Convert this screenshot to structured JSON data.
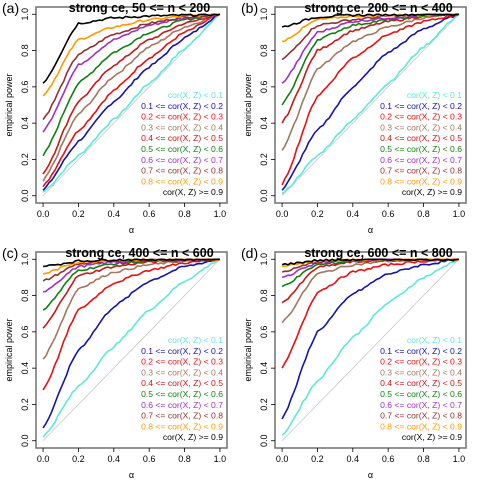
{
  "figure": {
    "ylabel": "empirical power",
    "xlabel": "α",
    "x_ticks": [
      "0.0",
      "0.2",
      "0.4",
      "0.6",
      "0.8",
      "1.0"
    ],
    "y_ticks": [
      "0.0",
      "0.2",
      "0.4",
      "0.6",
      "0.8",
      "1.0"
    ],
    "legend": [
      {
        "label": "cor(X, Z) < 0.1",
        "color": "#5ee8d8"
      },
      {
        "label": "0.1 <= cor(X, Z) < 0.2",
        "color": "#1414a8"
      },
      {
        "label": "0.2 <= cor(X, Z) < 0.3",
        "color": "#e81010"
      },
      {
        "label": "0.3 <= cor(X, Z) < 0.4",
        "color": "#a07860"
      },
      {
        "label": "0.4 <= cor(X, Z) < 0.5",
        "color": "#c81818"
      },
      {
        "label": "0.5 <= cor(X, Z) < 0.6",
        "color": "#108010"
      },
      {
        "label": "0.6 <= cor(X, Z) < 0.7",
        "color": "#a030c0"
      },
      {
        "label": "0.7 <= cor(X, Z) < 0.8",
        "color": "#903030"
      },
      {
        "label": "0.8 <= cor(X, Z) < 0.9",
        "color": "#ff9a00"
      },
      {
        "label": "cor(X, Z) >= 0.9",
        "color": "#000000"
      }
    ]
  },
  "chart_data": [
    {
      "type": "line",
      "panel_tag": "(a)",
      "title": "strong ce,  50 <= n < 200",
      "xlim": [
        0,
        1
      ],
      "ylim": [
        0,
        1
      ],
      "reference_line": "y = x",
      "series": [
        {
          "name": "cor(X, Z) < 0.1",
          "x": [
            0,
            0.2,
            0.4,
            0.6,
            0.8,
            1.0
          ],
          "y": [
            0.02,
            0.22,
            0.42,
            0.62,
            0.81,
            1.0
          ]
        },
        {
          "name": "0.1 <= cor(X, Z) < 0.2",
          "x": [
            0,
            0.2,
            0.4,
            0.6,
            0.8,
            1.0
          ],
          "y": [
            0.03,
            0.3,
            0.52,
            0.71,
            0.87,
            1.0
          ]
        },
        {
          "name": "0.2 <= cor(X, Z) < 0.3",
          "x": [
            0,
            0.2,
            0.4,
            0.6,
            0.8,
            1.0
          ],
          "y": [
            0.05,
            0.36,
            0.58,
            0.76,
            0.9,
            1.0
          ]
        },
        {
          "name": "0.3 <= cor(X, Z) < 0.4",
          "x": [
            0,
            0.2,
            0.4,
            0.6,
            0.8,
            1.0
          ],
          "y": [
            0.08,
            0.45,
            0.66,
            0.82,
            0.93,
            1.0
          ]
        },
        {
          "name": "0.4 <= cor(X, Z) < 0.5",
          "x": [
            0,
            0.2,
            0.4,
            0.6,
            0.8,
            1.0
          ],
          "y": [
            0.12,
            0.52,
            0.72,
            0.86,
            0.95,
            1.0
          ]
        },
        {
          "name": "0.5 <= cor(X, Z) < 0.6",
          "x": [
            0,
            0.2,
            0.4,
            0.6,
            0.8,
            1.0
          ],
          "y": [
            0.22,
            0.62,
            0.79,
            0.9,
            0.97,
            1.0
          ]
        },
        {
          "name": "0.6 <= cor(X, Z) < 0.7",
          "x": [
            0,
            0.2,
            0.4,
            0.6,
            0.8,
            1.0
          ],
          "y": [
            0.35,
            0.72,
            0.86,
            0.94,
            0.98,
            1.0
          ]
        },
        {
          "name": "0.7 <= cor(X, Z) < 0.8",
          "x": [
            0,
            0.2,
            0.4,
            0.6,
            0.8,
            1.0
          ],
          "y": [
            0.42,
            0.78,
            0.89,
            0.95,
            0.985,
            1.0
          ]
        },
        {
          "name": "0.8 <= cor(X, Z) < 0.9",
          "x": [
            0,
            0.2,
            0.4,
            0.6,
            0.8,
            1.0
          ],
          "y": [
            0.55,
            0.86,
            0.93,
            0.97,
            0.99,
            1.0
          ]
        },
        {
          "name": "cor(X, Z) >= 0.9",
          "x": [
            0,
            0.2,
            0.4,
            0.6,
            0.8,
            1.0
          ],
          "y": [
            0.62,
            0.95,
            0.98,
            0.99,
            0.995,
            1.0
          ]
        }
      ]
    },
    {
      "type": "line",
      "panel_tag": "(b)",
      "title": "strong ce,  200 <= n < 400",
      "xlim": [
        0,
        1
      ],
      "ylim": [
        0,
        1
      ],
      "reference_line": "y = x",
      "series": [
        {
          "name": "cor(X, Z) < 0.1",
          "x": [
            0,
            0.2,
            0.4,
            0.6,
            0.8,
            1.0
          ],
          "y": [
            0.01,
            0.22,
            0.42,
            0.62,
            0.82,
            1.0
          ]
        },
        {
          "name": "0.1 <= cor(X, Z) < 0.2",
          "x": [
            0,
            0.2,
            0.4,
            0.6,
            0.8,
            1.0
          ],
          "y": [
            0.03,
            0.36,
            0.6,
            0.79,
            0.92,
            1.0
          ]
        },
        {
          "name": "0.2 <= cor(X, Z) < 0.3",
          "x": [
            0,
            0.2,
            0.4,
            0.6,
            0.8,
            1.0
          ],
          "y": [
            0.06,
            0.55,
            0.76,
            0.89,
            0.96,
            1.0
          ]
        },
        {
          "name": "0.3 <= cor(X, Z) < 0.4",
          "x": [
            0,
            0.2,
            0.4,
            0.6,
            0.8,
            1.0
          ],
          "y": [
            0.25,
            0.7,
            0.85,
            0.93,
            0.98,
            1.0
          ]
        },
        {
          "name": "0.4 <= cor(X, Z) < 0.5",
          "x": [
            0,
            0.2,
            0.4,
            0.6,
            0.8,
            1.0
          ],
          "y": [
            0.4,
            0.8,
            0.91,
            0.96,
            0.99,
            1.0
          ]
        },
        {
          "name": "0.5 <= cor(X, Z) < 0.6",
          "x": [
            0,
            0.2,
            0.4,
            0.6,
            0.8,
            1.0
          ],
          "y": [
            0.5,
            0.86,
            0.94,
            0.97,
            0.99,
            1.0
          ]
        },
        {
          "name": "0.6 <= cor(X, Z) < 0.7",
          "x": [
            0,
            0.2,
            0.4,
            0.6,
            0.8,
            1.0
          ],
          "y": [
            0.62,
            0.9,
            0.96,
            0.98,
            0.995,
            1.0
          ]
        },
        {
          "name": "0.7 <= cor(X, Z) < 0.8",
          "x": [
            0,
            0.2,
            0.4,
            0.6,
            0.8,
            1.0
          ],
          "y": [
            0.75,
            0.94,
            0.97,
            0.99,
            0.997,
            1.0
          ]
        },
        {
          "name": "0.8 <= cor(X, Z) < 0.9",
          "x": [
            0,
            0.2,
            0.4,
            0.6,
            0.8,
            1.0
          ],
          "y": [
            0.85,
            0.97,
            0.99,
            0.995,
            0.998,
            1.0
          ]
        },
        {
          "name": "cor(X, Z) >= 0.9",
          "x": [
            0,
            0.2,
            0.4,
            0.6,
            0.8,
            1.0
          ],
          "y": [
            0.93,
            0.985,
            0.995,
            0.998,
            0.999,
            1.0
          ]
        }
      ]
    },
    {
      "type": "line",
      "panel_tag": "(c)",
      "title": "strong ce,  400 <= n < 600",
      "xlim": [
        0,
        1
      ],
      "ylim": [
        0,
        1
      ],
      "reference_line": "y = x",
      "series": [
        {
          "name": "cor(X, Z) < 0.1",
          "x": [
            0,
            0.2,
            0.4,
            0.6,
            0.8,
            1.0
          ],
          "y": [
            0.02,
            0.3,
            0.52,
            0.72,
            0.88,
            1.0
          ]
        },
        {
          "name": "0.1 <= cor(X, Z) < 0.2",
          "x": [
            0,
            0.2,
            0.4,
            0.6,
            0.8,
            1.0
          ],
          "y": [
            0.07,
            0.5,
            0.74,
            0.88,
            0.96,
            1.0
          ]
        },
        {
          "name": "0.2 <= cor(X, Z) < 0.3",
          "x": [
            0,
            0.2,
            0.4,
            0.6,
            0.8,
            1.0
          ],
          "y": [
            0.28,
            0.72,
            0.87,
            0.94,
            0.98,
            1.0
          ]
        },
        {
          "name": "0.3 <= cor(X, Z) < 0.4",
          "x": [
            0,
            0.2,
            0.4,
            0.6,
            0.8,
            1.0
          ],
          "y": [
            0.45,
            0.84,
            0.93,
            0.97,
            0.99,
            1.0
          ]
        },
        {
          "name": "0.4 <= cor(X, Z) < 0.5",
          "x": [
            0,
            0.2,
            0.4,
            0.6,
            0.8,
            1.0
          ],
          "y": [
            0.62,
            0.91,
            0.96,
            0.985,
            0.995,
            1.0
          ]
        },
        {
          "name": "0.5 <= cor(X, Z) < 0.6",
          "x": [
            0,
            0.2,
            0.4,
            0.6,
            0.8,
            1.0
          ],
          "y": [
            0.72,
            0.94,
            0.975,
            0.99,
            0.997,
            1.0
          ]
        },
        {
          "name": "0.6 <= cor(X, Z) < 0.7",
          "x": [
            0,
            0.2,
            0.4,
            0.6,
            0.8,
            1.0
          ],
          "y": [
            0.82,
            0.96,
            0.985,
            0.995,
            0.998,
            1.0
          ]
        },
        {
          "name": "0.7 <= cor(X, Z) < 0.8",
          "x": [
            0,
            0.2,
            0.4,
            0.6,
            0.8,
            1.0
          ],
          "y": [
            0.88,
            0.975,
            0.99,
            0.997,
            0.999,
            1.0
          ]
        },
        {
          "name": "0.8 <= cor(X, Z) < 0.9",
          "x": [
            0,
            0.2,
            0.4,
            0.6,
            0.8,
            1.0
          ],
          "y": [
            0.92,
            0.985,
            0.995,
            0.998,
            0.999,
            1.0
          ]
        },
        {
          "name": "cor(X, Z) >= 0.9",
          "x": [
            0,
            0.2,
            0.4,
            0.6,
            0.8,
            1.0
          ],
          "y": [
            0.96,
            0.99,
            0.997,
            0.999,
            1.0,
            1.0
          ]
        }
      ]
    },
    {
      "type": "line",
      "panel_tag": "(d)",
      "title": "strong ce,  600 <= n < 800",
      "xlim": [
        0,
        1
      ],
      "ylim": [
        0,
        1
      ],
      "reference_line": "y = x",
      "series": [
        {
          "name": "cor(X, Z) < 0.1",
          "x": [
            0,
            0.2,
            0.4,
            0.6,
            0.8,
            1.0
          ],
          "y": [
            0.03,
            0.33,
            0.57,
            0.76,
            0.9,
            1.0
          ]
        },
        {
          "name": "0.1 <= cor(X, Z) < 0.2",
          "x": [
            0,
            0.2,
            0.4,
            0.6,
            0.8,
            1.0
          ],
          "y": [
            0.12,
            0.6,
            0.81,
            0.92,
            0.97,
            1.0
          ]
        },
        {
          "name": "0.2 <= cor(X, Z) < 0.3",
          "x": [
            0,
            0.2,
            0.4,
            0.6,
            0.8,
            1.0
          ],
          "y": [
            0.4,
            0.82,
            0.93,
            0.97,
            0.99,
            1.0
          ]
        },
        {
          "name": "0.3 <= cor(X, Z) < 0.4",
          "x": [
            0,
            0.2,
            0.4,
            0.6,
            0.8,
            1.0
          ],
          "y": [
            0.65,
            0.92,
            0.97,
            0.99,
            0.997,
            1.0
          ]
        },
        {
          "name": "0.4 <= cor(X, Z) < 0.5",
          "x": [
            0,
            0.2,
            0.4,
            0.6,
            0.8,
            1.0
          ],
          "y": [
            0.76,
            0.955,
            0.985,
            0.995,
            0.998,
            1.0
          ]
        },
        {
          "name": "0.5 <= cor(X, Z) < 0.6",
          "x": [
            0,
            0.2,
            0.4,
            0.6,
            0.8,
            1.0
          ],
          "y": [
            0.85,
            0.97,
            0.99,
            0.997,
            0.999,
            1.0
          ]
        },
        {
          "name": "0.6 <= cor(X, Z) < 0.7",
          "x": [
            0,
            0.2,
            0.4,
            0.6,
            0.8,
            1.0
          ],
          "y": [
            0.9,
            0.98,
            0.994,
            0.998,
            0.999,
            1.0
          ]
        },
        {
          "name": "0.7 <= cor(X, Z) < 0.8",
          "x": [
            0,
            0.2,
            0.4,
            0.6,
            0.8,
            1.0
          ],
          "y": [
            0.93,
            0.985,
            0.996,
            0.999,
            1.0,
            1.0
          ]
        },
        {
          "name": "0.8 <= cor(X, Z) < 0.9",
          "x": [
            0,
            0.2,
            0.4,
            0.6,
            0.8,
            1.0
          ],
          "y": [
            0.96,
            0.99,
            0.997,
            0.999,
            1.0,
            1.0
          ]
        },
        {
          "name": "cor(X, Z) >= 0.9",
          "x": [
            0,
            0.2,
            0.4,
            0.6,
            0.8,
            1.0
          ],
          "y": [
            0.97,
            0.994,
            0.998,
            1.0,
            1.0,
            1.0
          ]
        }
      ]
    }
  ]
}
